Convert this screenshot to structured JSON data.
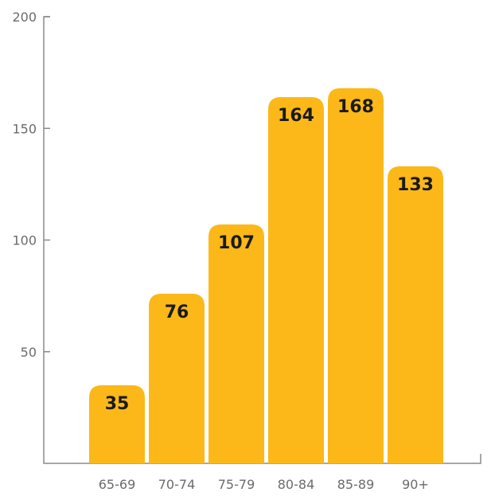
{
  "chart_data": {
    "type": "bar",
    "title": "",
    "xlabel": "",
    "ylabel": "",
    "categories": [
      "65-69",
      "70-74",
      "75-79",
      "80-84",
      "85-89",
      "90+"
    ],
    "values": [
      35,
      76,
      107,
      164,
      168,
      133
    ],
    "data_labels": [
      "35",
      "76",
      "107",
      "164",
      "168",
      "133"
    ],
    "ylim": [
      0,
      200
    ],
    "y_ticks": [
      50,
      100,
      150,
      200
    ],
    "y_tick_labels": [
      "50",
      "100",
      "150",
      "200"
    ],
    "grid": false,
    "legend": "none",
    "colors": {
      "bar": "#FBB818",
      "axis": "#8a8a8a",
      "tick_text": "#6b6b6b",
      "label_text": "#1a1a1a"
    }
  }
}
